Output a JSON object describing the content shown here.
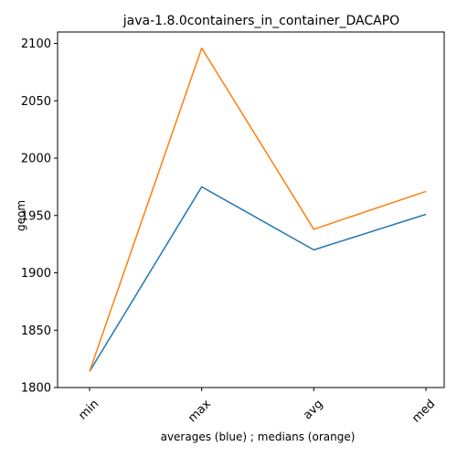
{
  "chart_data": {
    "type": "line",
    "title": "java-1.8.0containers_in_container_DACAPO",
    "xlabel": "averages (blue) ; medians (orange)",
    "ylabel": "geom",
    "categories": [
      "min",
      "max",
      "avg",
      "med"
    ],
    "ylim": [
      1800,
      2110
    ],
    "yticks": [
      1800,
      1850,
      1900,
      1950,
      2000,
      2050,
      2100
    ],
    "grid": false,
    "series": [
      {
        "color": "#1f77b4",
        "values": [
          1814,
          1975,
          1920,
          1951
        ]
      },
      {
        "color": "#ff7f0e",
        "values": [
          1814,
          2096,
          1938,
          1971
        ]
      }
    ]
  }
}
